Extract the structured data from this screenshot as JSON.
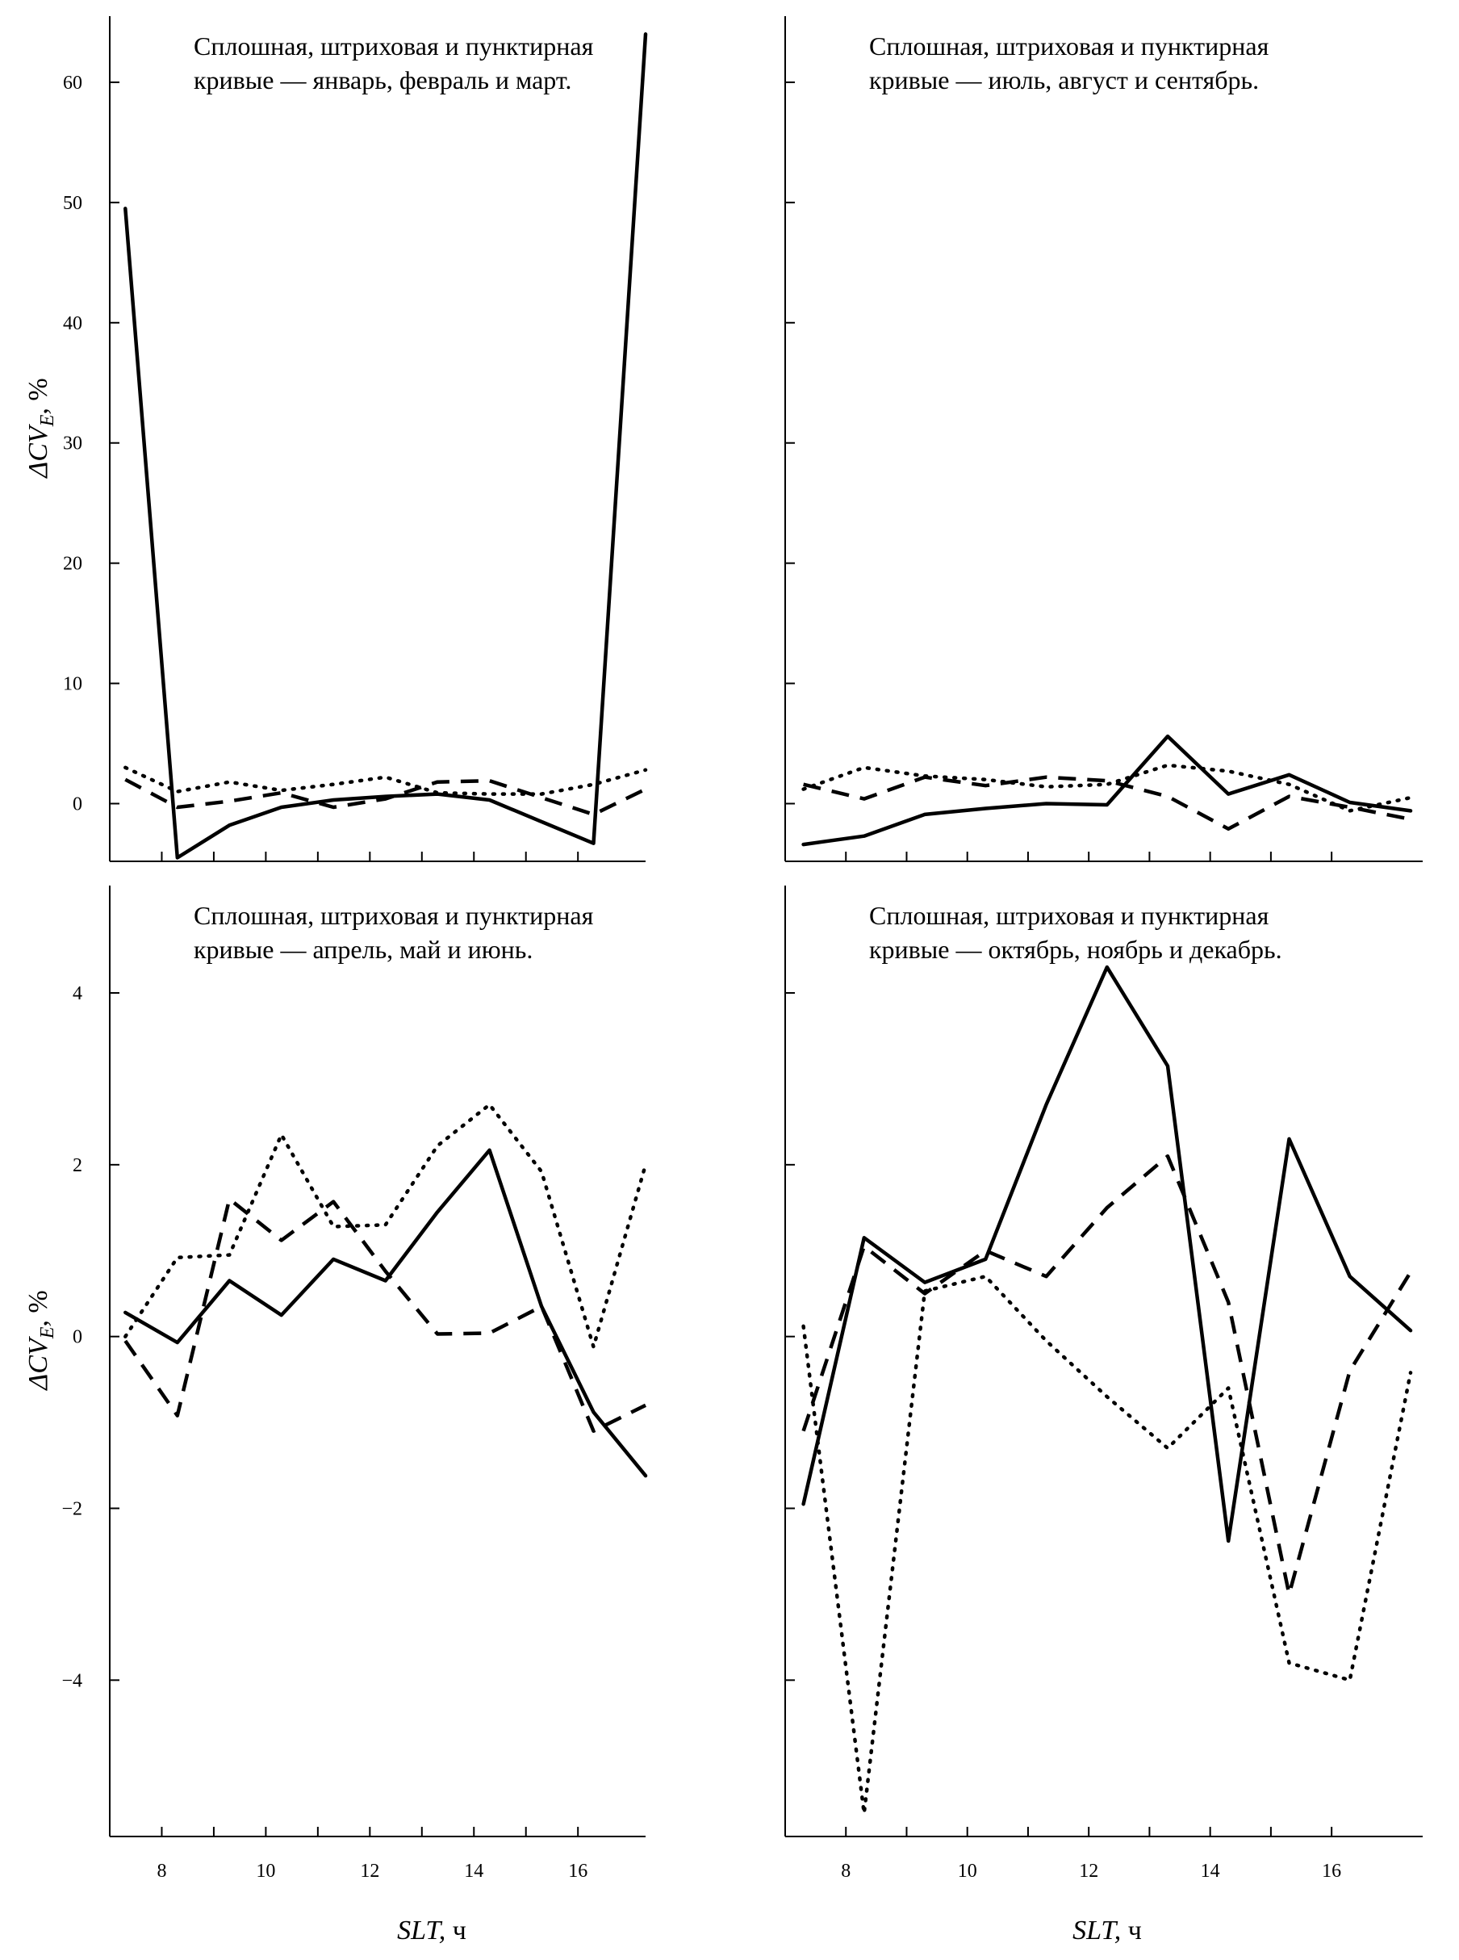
{
  "figure": {
    "ylabel_main": "ΔCV",
    "ylabel_sub": "E",
    "ylabel_suffix": ", %",
    "xlabel_main": "SLT,",
    "xlabel_suffix": " ч"
  },
  "chart_data": [
    {
      "type": "line",
      "annotation": [
        "Сплошная, штриховая и пунктирная",
        "кривые — январь, февраль и март."
      ],
      "x": [
        7.3,
        8.3,
        9.3,
        10.3,
        11.3,
        12.3,
        13.3,
        14.3,
        15.3,
        16.3,
        17.3
      ],
      "series": [
        {
          "style": "solid",
          "values": [
            49.5,
            -4.5,
            -1.8,
            -0.3,
            0.3,
            0.6,
            0.8,
            0.3,
            -1.5,
            -3.3,
            64
          ]
        },
        {
          "style": "dashed",
          "values": [
            2.0,
            -0.3,
            0.2,
            0.9,
            -0.3,
            0.4,
            1.8,
            1.9,
            0.5,
            -0.9,
            1.2
          ]
        },
        {
          "style": "dotted",
          "values": [
            3.0,
            1.0,
            1.8,
            1.1,
            1.6,
            2.2,
            0.9,
            0.8,
            0.8,
            1.6,
            2.8
          ]
        }
      ],
      "xlim": [
        7.0,
        17.3
      ],
      "ylim": [
        -4.8,
        65.5
      ],
      "xticks": [
        8,
        10,
        12,
        14,
        16
      ],
      "xticks_minor": [
        9,
        11,
        13,
        15
      ],
      "yticks": [
        0,
        10,
        20,
        30,
        40,
        50,
        60
      ],
      "ytick_labels": [
        "0",
        "10",
        "20",
        "30",
        "40",
        "50",
        "60"
      ],
      "show_xtick_labels": false,
      "show_ytick_labels": true
    },
    {
      "type": "line",
      "annotation": [
        "Сплошная, штриховая и пунктирная",
        "кривые —  июль, август и сентябрь."
      ],
      "x": [
        7.3,
        8.3,
        9.3,
        10.3,
        11.3,
        12.3,
        13.3,
        14.3,
        15.3,
        16.3,
        17.3
      ],
      "series": [
        {
          "style": "solid",
          "values": [
            -3.4,
            -2.7,
            -0.9,
            -0.4,
            0.0,
            -0.1,
            5.6,
            0.8,
            2.4,
            0.1,
            -0.6
          ]
        },
        {
          "style": "dashed",
          "values": [
            1.6,
            0.4,
            2.2,
            1.5,
            2.2,
            1.9,
            0.6,
            -2.1,
            0.6,
            -0.3,
            -1.3
          ]
        },
        {
          "style": "dotted",
          "values": [
            1.2,
            3.0,
            2.3,
            2.0,
            1.4,
            1.6,
            3.2,
            2.7,
            1.6,
            -0.6,
            0.5
          ]
        }
      ],
      "xlim": [
        7.0,
        17.5
      ],
      "ylim": [
        -4.8,
        65.5
      ],
      "xticks": [
        8,
        10,
        12,
        14,
        16
      ],
      "xticks_minor": [
        9,
        11,
        13,
        15
      ],
      "yticks": [
        0,
        10,
        20,
        30,
        40,
        50,
        60
      ],
      "ytick_labels": [
        "0",
        "10",
        "20",
        "30",
        "40",
        "50",
        "60"
      ],
      "show_xtick_labels": false,
      "show_ytick_labels": false
    },
    {
      "type": "line",
      "annotation": [
        "Сплошная, штриховая и пунктирная",
        "кривые — апрель, май и июнь."
      ],
      "x": [
        7.3,
        8.3,
        9.3,
        10.3,
        11.3,
        12.3,
        13.3,
        14.3,
        15.3,
        16.3,
        17.3
      ],
      "series": [
        {
          "style": "solid",
          "values": [
            0.28,
            -0.07,
            0.65,
            0.25,
            0.9,
            0.65,
            1.45,
            2.17,
            0.35,
            -0.88,
            -1.62
          ]
        },
        {
          "style": "dashed",
          "values": [
            -0.05,
            -0.92,
            1.6,
            1.12,
            1.57,
            0.76,
            0.03,
            0.04,
            0.35,
            -1.1,
            -0.8
          ]
        },
        {
          "style": "dotted",
          "values": [
            0.0,
            0.92,
            0.95,
            2.35,
            1.28,
            1.3,
            2.22,
            2.7,
            1.92,
            -0.12,
            2.0
          ]
        }
      ],
      "xlim": [
        7.0,
        17.3
      ],
      "ylim": [
        -5.82,
        5.25
      ],
      "xticks": [
        8,
        10,
        12,
        14,
        16
      ],
      "xticks_minor": [
        9,
        11,
        13,
        15
      ],
      "yticks": [
        -4,
        -2,
        0,
        2,
        4
      ],
      "ytick_labels": [
        "−4",
        "−2",
        "0",
        "2",
        "4"
      ],
      "xtick_labels": [
        "8",
        "10",
        "12",
        "14",
        "16"
      ],
      "show_xtick_labels": true,
      "show_ytick_labels": true
    },
    {
      "type": "line",
      "annotation": [
        "Сплошная, штриховая и пунктирная",
        "кривые —  октябрь, ноябрь и декабрь."
      ],
      "x": [
        7.3,
        8.3,
        9.3,
        10.3,
        11.3,
        12.3,
        13.3,
        14.3,
        15.3,
        16.3,
        17.3
      ],
      "series": [
        {
          "style": "solid",
          "values": [
            -1.95,
            1.15,
            0.63,
            0.9,
            2.7,
            4.3,
            3.15,
            -2.38,
            2.3,
            0.7,
            0.07
          ]
        },
        {
          "style": "dashed",
          "values": [
            -1.1,
            1.05,
            0.5,
            1.0,
            0.7,
            1.5,
            2.1,
            0.4,
            -3.0,
            -0.4,
            0.75
          ]
        },
        {
          "style": "dotted",
          "values": [
            0.12,
            -5.55,
            0.53,
            0.7,
            -0.05,
            -0.7,
            -1.3,
            -0.6,
            -3.8,
            -4.0,
            -0.42
          ]
        }
      ],
      "xlim": [
        7.0,
        17.5
      ],
      "ylim": [
        -5.82,
        5.25
      ],
      "xticks": [
        8,
        10,
        12,
        14,
        16
      ],
      "xticks_minor": [
        9,
        11,
        13,
        15
      ],
      "yticks": [
        -4,
        -2,
        0,
        2,
        4
      ],
      "ytick_labels": [
        "−4",
        "−2",
        "0",
        "2",
        "4"
      ],
      "xtick_labels": [
        "8",
        "10",
        "12",
        "14",
        "16"
      ],
      "show_xtick_labels": true,
      "show_ytick_labels": false
    }
  ]
}
